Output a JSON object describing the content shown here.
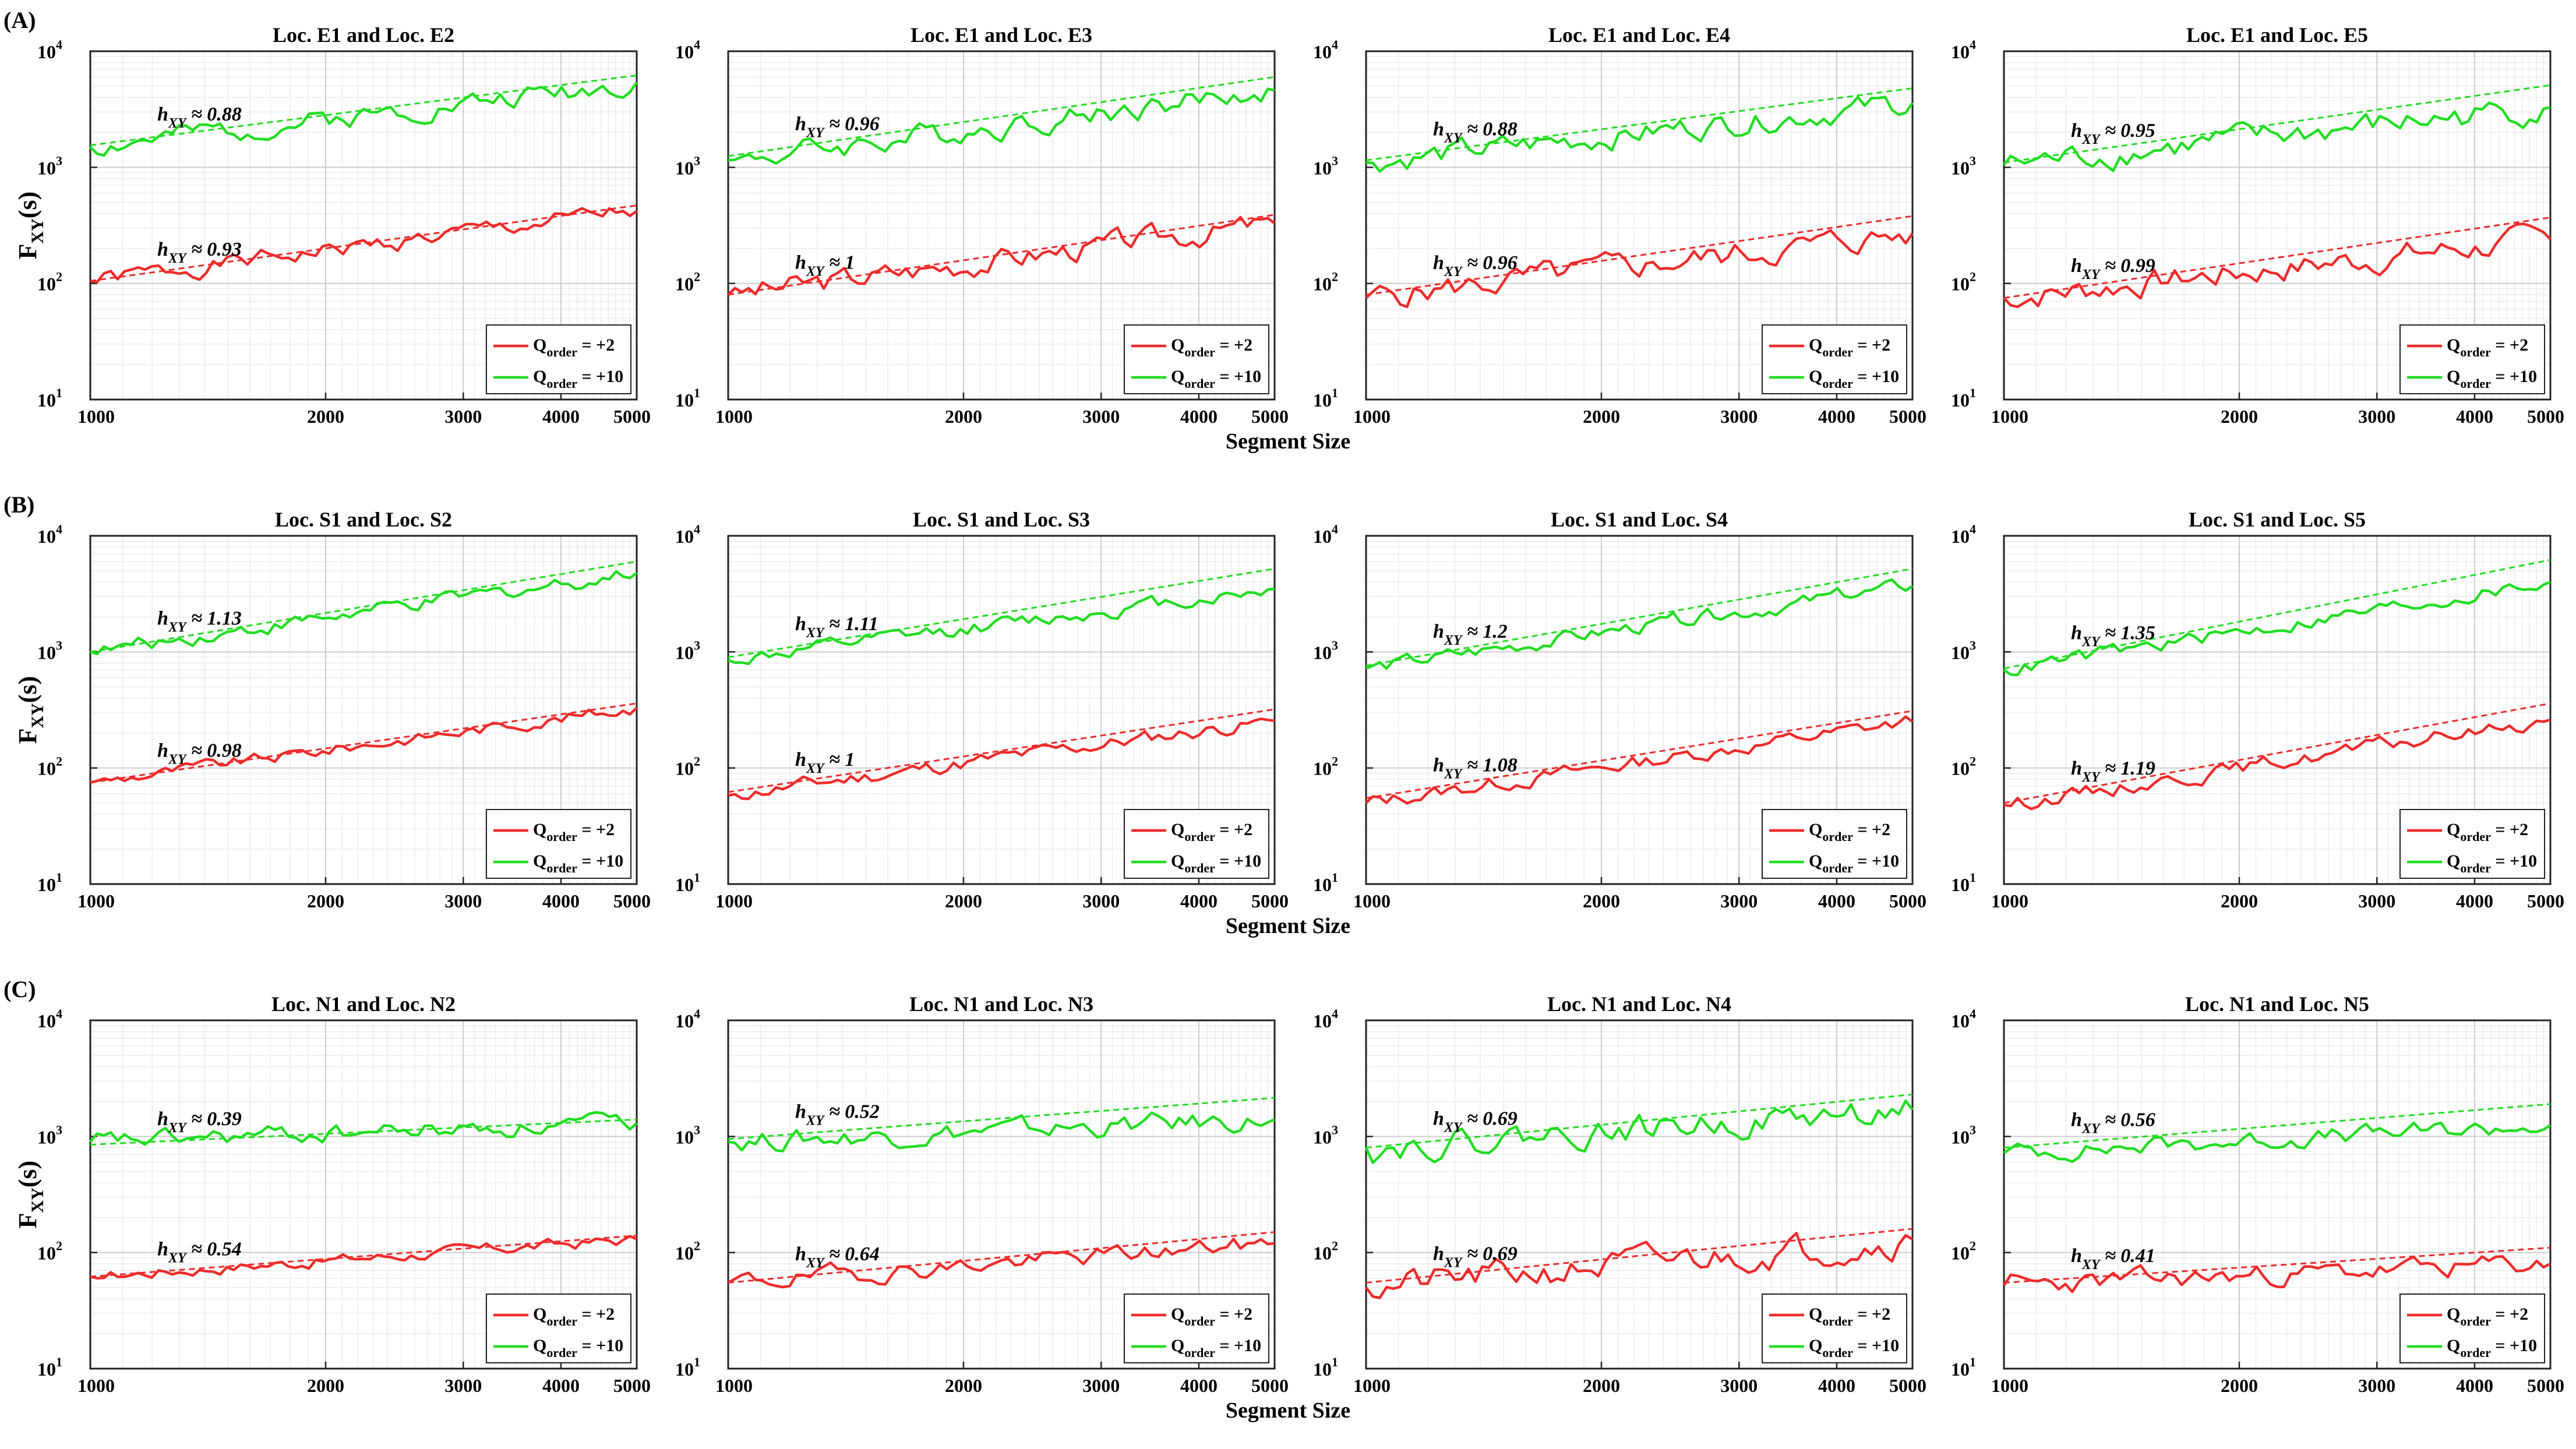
{
  "figure": {
    "y_label": "F",
    "y_label_sub": "XY",
    "y_label_suffix": "(s)",
    "x_label": "Segment Size",
    "legend": [
      {
        "prefix": "Q",
        "sub": "order",
        "suffix": " = +2",
        "color": "#ee2b2b"
      },
      {
        "prefix": "Q",
        "sub": "order",
        "suffix": " = +10",
        "color": "#22dd22"
      }
    ],
    "hurst_symbol": "h",
    "hurst_sub": "XY",
    "approx": " ≈ ",
    "x_ticks": [
      1000,
      2000,
      3000,
      4000,
      5000
    ],
    "y_tick_base": "10",
    "y_tick_exponents": [
      1,
      2,
      3,
      4
    ],
    "rows": [
      "(A)",
      "(B)",
      "(C)"
    ]
  },
  "chart_data": [
    {
      "type": "line",
      "row": "(A)",
      "title": "Loc. E1 and Loc. E2",
      "xlim": [
        1000,
        5000
      ],
      "ylim": [
        10,
        10000
      ],
      "xscale": "log",
      "yscale": "log",
      "series": [
        {
          "name": "Q_order = +2",
          "start": 105,
          "end": 420,
          "h": "0.93",
          "fit_start": 105,
          "fit_end": 470,
          "amp": 0.06,
          "seed": 1
        },
        {
          "name": "Q_order = +10",
          "start": 1500,
          "end": 5400,
          "h": "0.88",
          "fit_start": 1550,
          "fit_end": 6200,
          "amp": 0.07,
          "seed": 2
        }
      ]
    },
    {
      "type": "line",
      "row": "(A)",
      "title": "Loc. E1 and Loc. E3",
      "xlim": [
        1000,
        5000
      ],
      "ylim": [
        10,
        10000
      ],
      "xscale": "log",
      "yscale": "log",
      "series": [
        {
          "name": "Q_order = +2",
          "start": 80,
          "end": 330,
          "h": "1",
          "fit_start": 80,
          "fit_end": 390,
          "amp": 0.08,
          "seed": 3
        },
        {
          "name": "Q_order = +10",
          "start": 1150,
          "end": 4600,
          "h": "0.96",
          "fit_start": 1250,
          "fit_end": 6000,
          "amp": 0.08,
          "seed": 4
        }
      ]
    },
    {
      "type": "line",
      "row": "(A)",
      "title": "Loc. E1 and Loc. E4",
      "xlim": [
        1000,
        5000
      ],
      "ylim": [
        10,
        10000
      ],
      "xscale": "log",
      "yscale": "log",
      "series": [
        {
          "name": "Q_order = +2",
          "start": 75,
          "end": 270,
          "h": "0.96",
          "fit_start": 80,
          "fit_end": 380,
          "amp": 0.09,
          "seed": 5
        },
        {
          "name": "Q_order = +10",
          "start": 1100,
          "end": 3600,
          "h": "0.88",
          "fit_start": 1150,
          "fit_end": 4800,
          "amp": 0.08,
          "seed": 6
        }
      ]
    },
    {
      "type": "line",
      "row": "(A)",
      "title": "Loc. E1 and Loc. E5",
      "xlim": [
        1000,
        5000
      ],
      "ylim": [
        10,
        10000
      ],
      "xscale": "log",
      "yscale": "log",
      "series": [
        {
          "name": "Q_order = +2",
          "start": 75,
          "end": 240,
          "h": "0.99",
          "fit_start": 75,
          "fit_end": 370,
          "amp": 0.09,
          "seed": 7
        },
        {
          "name": "Q_order = +10",
          "start": 1050,
          "end": 3300,
          "h": "0.95",
          "fit_start": 1100,
          "fit_end": 5100,
          "amp": 0.09,
          "seed": 8
        }
      ]
    },
    {
      "type": "line",
      "row": "(B)",
      "title": "Loc. S1 and Loc. S2",
      "xlim": [
        1000,
        5000
      ],
      "ylim": [
        10,
        10000
      ],
      "xscale": "log",
      "yscale": "log",
      "series": [
        {
          "name": "Q_order = +2",
          "start": 75,
          "end": 330,
          "h": "0.98",
          "fit_start": 75,
          "fit_end": 360,
          "amp": 0.04,
          "seed": 9
        },
        {
          "name": "Q_order = +10",
          "start": 1000,
          "end": 4800,
          "h": "1.13",
          "fit_start": 1000,
          "fit_end": 6000,
          "amp": 0.05,
          "seed": 10
        }
      ]
    },
    {
      "type": "line",
      "row": "(B)",
      "title": "Loc. S1 and Loc. S3",
      "xlim": [
        1000,
        5000
      ],
      "ylim": [
        10,
        10000
      ],
      "xscale": "log",
      "yscale": "log",
      "series": [
        {
          "name": "Q_order = +2",
          "start": 58,
          "end": 255,
          "h": "1",
          "fit_start": 62,
          "fit_end": 320,
          "amp": 0.05,
          "seed": 11
        },
        {
          "name": "Q_order = +10",
          "start": 850,
          "end": 3500,
          "h": "1.11",
          "fit_start": 900,
          "fit_end": 5200,
          "amp": 0.05,
          "seed": 12
        }
      ]
    },
    {
      "type": "line",
      "row": "(B)",
      "title": "Loc. S1 and Loc. S4",
      "xlim": [
        1000,
        5000
      ],
      "ylim": [
        10,
        10000
      ],
      "xscale": "log",
      "yscale": "log",
      "series": [
        {
          "name": "Q_order = +2",
          "start": 50,
          "end": 250,
          "h": "1.08",
          "fit_start": 55,
          "fit_end": 310,
          "amp": 0.05,
          "seed": 13
        },
        {
          "name": "Q_order = +10",
          "start": 720,
          "end": 3700,
          "h": "1.2",
          "fit_start": 760,
          "fit_end": 5200,
          "amp": 0.05,
          "seed": 14
        }
      ]
    },
    {
      "type": "line",
      "row": "(B)",
      "title": "Loc. S1 and Loc. S5",
      "xlim": [
        1000,
        5000
      ],
      "ylim": [
        10,
        10000
      ],
      "xscale": "log",
      "yscale": "log",
      "series": [
        {
          "name": "Q_order = +2",
          "start": 48,
          "end": 260,
          "h": "1.19",
          "fit_start": 50,
          "fit_end": 360,
          "amp": 0.05,
          "seed": 15
        },
        {
          "name": "Q_order = +10",
          "start": 700,
          "end": 4000,
          "h": "1.35",
          "fit_start": 720,
          "fit_end": 6200,
          "amp": 0.05,
          "seed": 16
        }
      ]
    },
    {
      "type": "line",
      "row": "(C)",
      "title": "Loc. N1 and Loc. N2",
      "xlim": [
        1000,
        5000
      ],
      "ylim": [
        10,
        10000
      ],
      "xscale": "log",
      "yscale": "log",
      "series": [
        {
          "name": "Q_order = +2",
          "start": 62,
          "end": 130,
          "h": "0.54",
          "fit_start": 62,
          "fit_end": 140,
          "amp": 0.04,
          "seed": 17
        },
        {
          "name": "Q_order = +10",
          "start": 900,
          "end": 1300,
          "h": "0.39",
          "fit_start": 850,
          "fit_end": 1400,
          "amp": 0.06,
          "seed": 18
        }
      ]
    },
    {
      "type": "line",
      "row": "(C)",
      "title": "Loc. N1 and Loc. N3",
      "xlim": [
        1000,
        5000
      ],
      "ylim": [
        10,
        10000
      ],
      "xscale": "log",
      "yscale": "log",
      "series": [
        {
          "name": "Q_order = +2",
          "start": 55,
          "end": 120,
          "h": "0.64",
          "fit_start": 55,
          "fit_end": 150,
          "amp": 0.06,
          "seed": 19
        },
        {
          "name": "Q_order = +10",
          "start": 900,
          "end": 1400,
          "h": "0.52",
          "fit_start": 950,
          "fit_end": 2150,
          "amp": 0.07,
          "seed": 20
        }
      ]
    },
    {
      "type": "line",
      "row": "(C)",
      "title": "Loc. N1 and Loc. N4",
      "xlim": [
        1000,
        5000
      ],
      "ylim": [
        10,
        10000
      ],
      "xscale": "log",
      "yscale": "log",
      "series": [
        {
          "name": "Q_order = +2",
          "start": 50,
          "end": 130,
          "h": "0.69",
          "fit_start": 55,
          "fit_end": 160,
          "amp": 0.1,
          "seed": 21
        },
        {
          "name": "Q_order = +10",
          "start": 800,
          "end": 1700,
          "h": "0.69",
          "fit_start": 800,
          "fit_end": 2300,
          "amp": 0.09,
          "seed": 22
        }
      ]
    },
    {
      "type": "line",
      "row": "(C)",
      "title": "Loc. N1 and Loc. N5",
      "xlim": [
        1000,
        5000
      ],
      "ylim": [
        10,
        10000
      ],
      "xscale": "log",
      "yscale": "log",
      "series": [
        {
          "name": "Q_order = +2",
          "start": 52,
          "end": 80,
          "h": "0.41",
          "fit_start": 55,
          "fit_end": 110,
          "amp": 0.07,
          "seed": 23
        },
        {
          "name": "Q_order = +10",
          "start": 720,
          "end": 1250,
          "h": "0.56",
          "fit_start": 800,
          "fit_end": 1900,
          "amp": 0.06,
          "seed": 24
        }
      ]
    }
  ]
}
